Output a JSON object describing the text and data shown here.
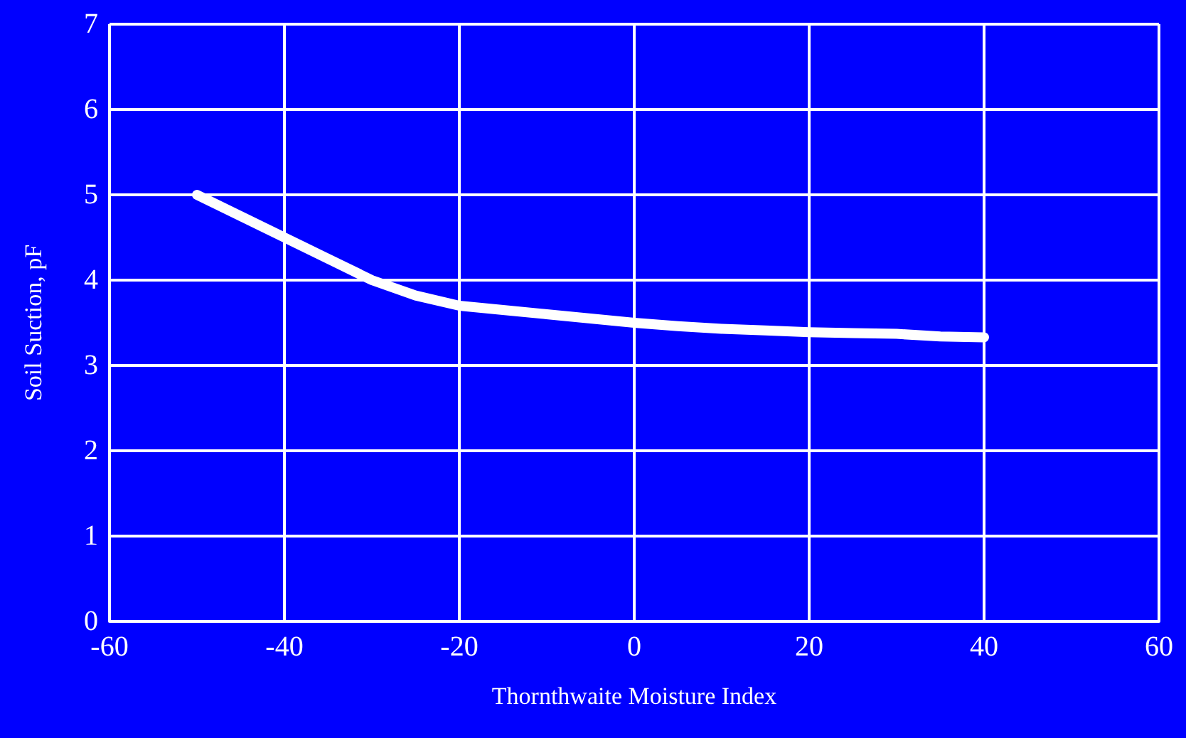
{
  "chart_data": {
    "type": "line",
    "xlabel": "Thornthwaite Moisture Index",
    "ylabel": "Soil Suction, pF",
    "x": [
      -50,
      -45,
      -40,
      -35,
      -30,
      -25,
      -20,
      -15,
      -10,
      -5,
      0,
      5,
      10,
      15,
      20,
      25,
      30,
      35,
      40
    ],
    "series": [
      {
        "color": "#ffffff",
        "values": [
          5.0,
          4.75,
          4.5,
          4.25,
          4.0,
          3.82,
          3.7,
          3.65,
          3.6,
          3.55,
          3.5,
          3.46,
          3.43,
          3.41,
          3.39,
          3.38,
          3.37,
          3.34,
          3.33
        ]
      }
    ],
    "xlim": [
      -60,
      60
    ],
    "xticks": [
      -60,
      -40,
      -20,
      0,
      20,
      40,
      60
    ],
    "ylim": [
      0,
      7
    ],
    "yticks": [
      0,
      1,
      2,
      3,
      4,
      5,
      6,
      7
    ],
    "grid": true,
    "line_style": "solid"
  }
}
